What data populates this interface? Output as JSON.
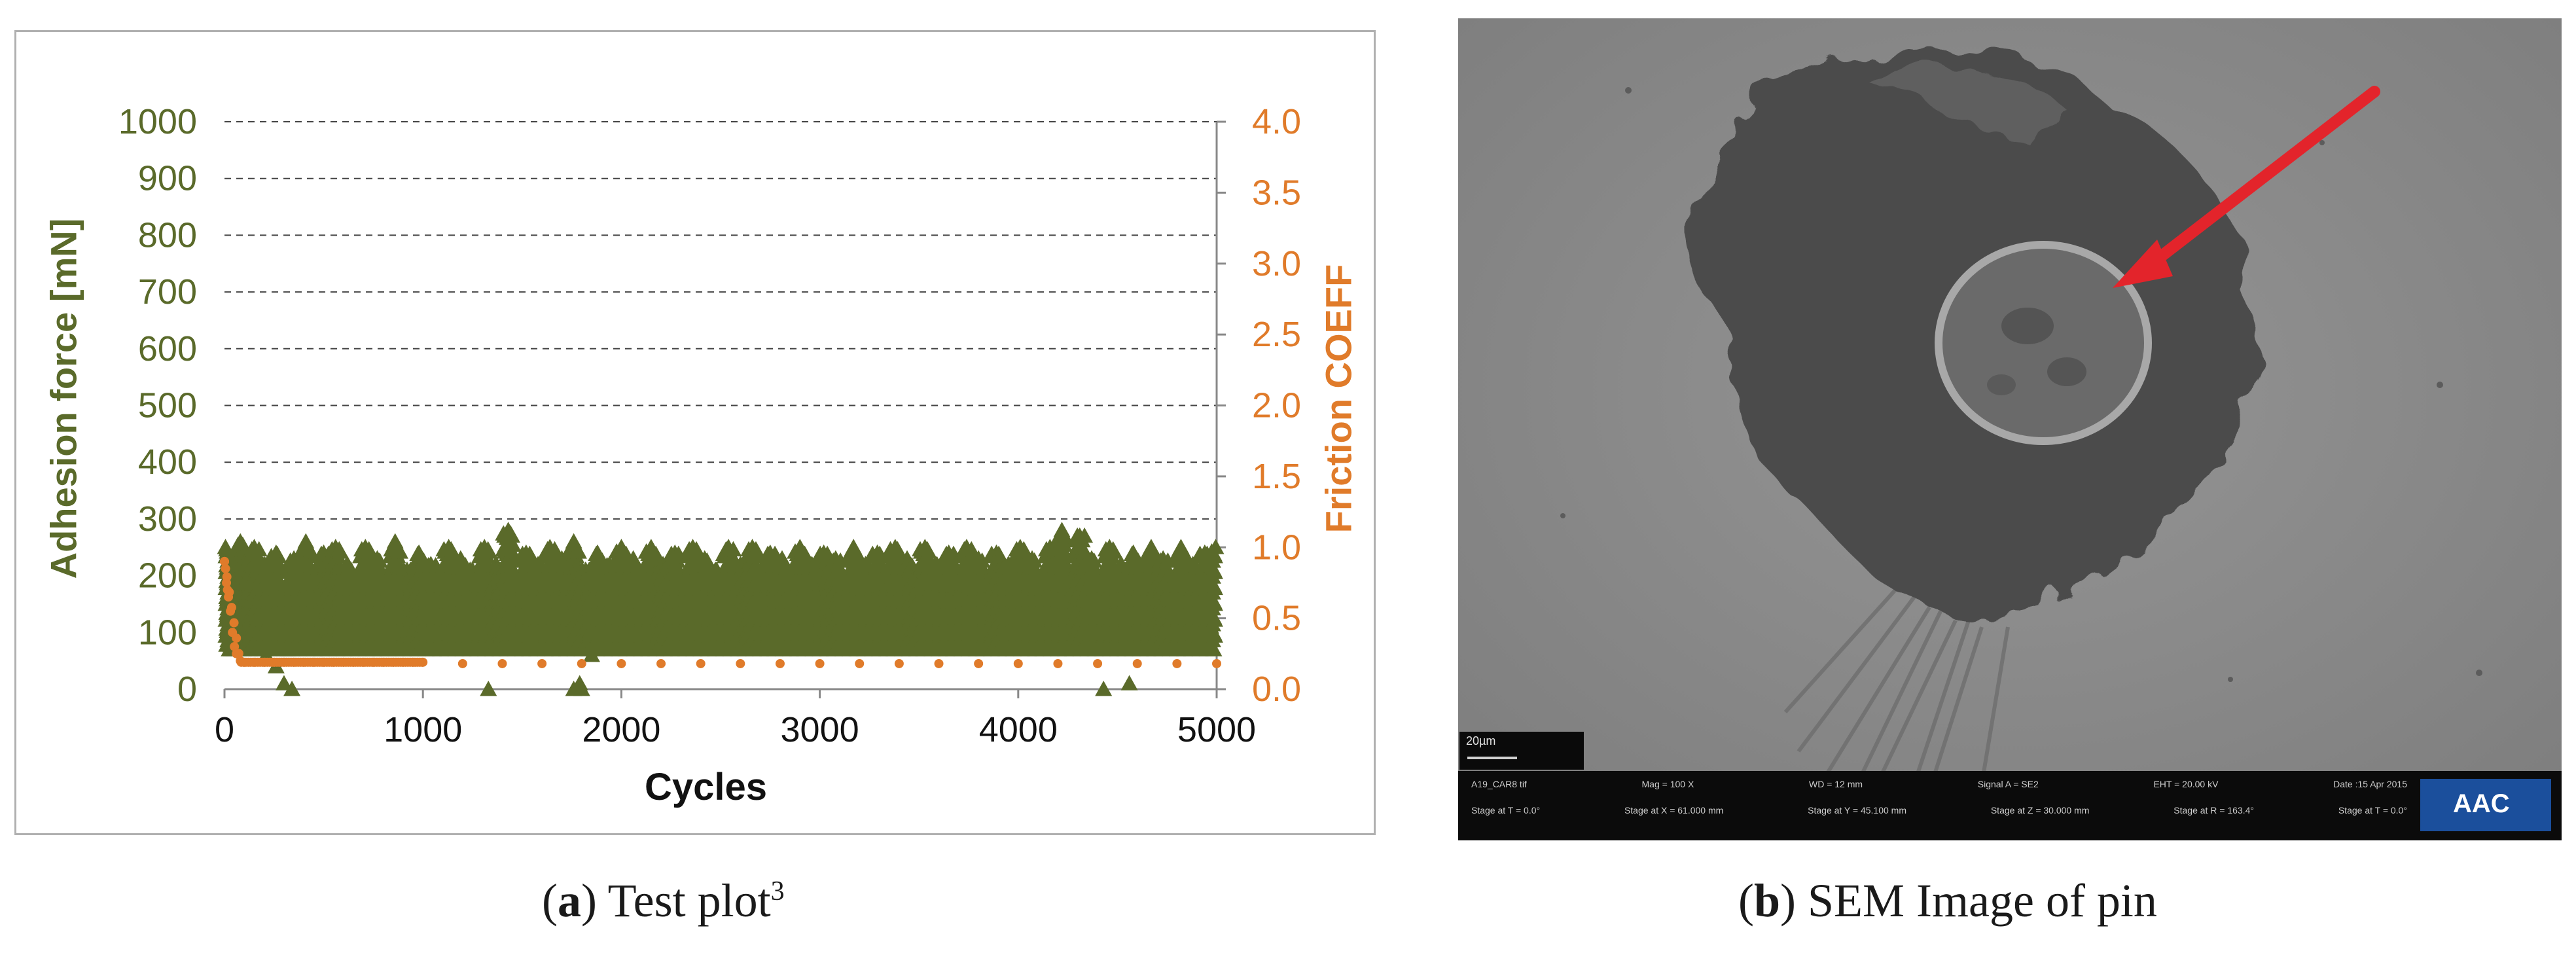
{
  "captions": {
    "a": {
      "open": "(",
      "letter": "a",
      "close": ")",
      "text": " Test plot",
      "superscript": "3"
    },
    "b": {
      "open": "(",
      "letter": "b",
      "close": ")",
      "text": " SEM Image of pin"
    }
  },
  "chart_data": {
    "type": "scatter",
    "x": {
      "label": "Cycles",
      "range": [
        0,
        5000
      ],
      "ticks": [
        "0",
        "1000",
        "2000",
        "3000",
        "4000",
        "5000"
      ]
    },
    "y_left": {
      "label": "Adhesion force [mN]",
      "range": [
        0,
        1000
      ],
      "color": "#5a6a2a",
      "ticks": [
        "0",
        "100",
        "200",
        "300",
        "400",
        "500",
        "600",
        "700",
        "800",
        "900",
        "1000"
      ]
    },
    "y_right": {
      "label": "Friction COEFF",
      "range": [
        0,
        4.0
      ],
      "color": "#e07b2a",
      "ticks": [
        "0.0",
        "0.5",
        "1.0",
        "1.5",
        "2.0",
        "2.5",
        "3.0",
        "3.5",
        "4.0"
      ]
    },
    "grid": "horizontal dashed",
    "series": [
      {
        "axis": "left",
        "marker": "triangle",
        "color": "#5a6a2a",
        "points": [
          [
            5,
            250
          ],
          [
            20,
            180
          ],
          [
            40,
            230
          ],
          [
            60,
            120
          ],
          [
            80,
            260
          ],
          [
            100,
            200
          ],
          [
            120,
            90
          ],
          [
            150,
            250
          ],
          [
            180,
            160
          ],
          [
            200,
            220
          ],
          [
            230,
            110
          ],
          [
            260,
            240
          ],
          [
            290,
            180
          ],
          [
            320,
            70
          ],
          [
            350,
            230
          ],
          [
            380,
            150
          ],
          [
            410,
            260
          ],
          [
            440,
            190
          ],
          [
            470,
            100
          ],
          [
            500,
            240
          ],
          [
            530,
            170
          ],
          [
            560,
            250
          ],
          [
            590,
            130
          ],
          [
            620,
            220
          ],
          [
            650,
            90
          ],
          [
            680,
            200
          ],
          [
            710,
            250
          ],
          [
            740,
            150
          ],
          [
            770,
            230
          ],
          [
            800,
            110
          ],
          [
            830,
            190
          ],
          [
            860,
            260
          ],
          [
            890,
            140
          ],
          [
            920,
            210
          ],
          [
            950,
            80
          ],
          [
            980,
            240
          ],
          [
            1010,
            170
          ],
          [
            1040,
            220
          ],
          [
            1070,
            100
          ],
          [
            1100,
            200
          ],
          [
            1130,
            250
          ],
          [
            1160,
            130
          ],
          [
            1190,
            230
          ],
          [
            1220,
            90
          ],
          [
            1250,
            210
          ],
          [
            1280,
            160
          ],
          [
            1310,
            250
          ],
          [
            1340,
            120
          ],
          [
            1370,
            220
          ],
          [
            1400,
            180
          ],
          [
            1430,
            280
          ],
          [
            1460,
            110
          ],
          [
            1490,
            200
          ],
          [
            1520,
            240
          ],
          [
            1550,
            130
          ],
          [
            1580,
            220
          ],
          [
            1610,
            90
          ],
          [
            1640,
            250
          ],
          [
            1670,
            170
          ],
          [
            1700,
            230
          ],
          [
            1730,
            110
          ],
          [
            1760,
            260
          ],
          [
            1790,
            150
          ],
          [
            1820,
            210
          ],
          [
            1850,
            60
          ],
          [
            1880,
            240
          ],
          [
            1910,
            180
          ],
          [
            1940,
            220
          ],
          [
            1970,
            100
          ],
          [
            2000,
            250
          ],
          [
            2030,
            170
          ],
          [
            2060,
            230
          ],
          [
            2090,
            120
          ],
          [
            2120,
            200
          ],
          [
            2150,
            250
          ],
          [
            2180,
            90
          ],
          [
            2210,
            220
          ],
          [
            2240,
            160
          ],
          [
            2270,
            240
          ],
          [
            2300,
            110
          ],
          [
            2330,
            200
          ],
          [
            2360,
            250
          ],
          [
            2390,
            140
          ],
          [
            2420,
            230
          ],
          [
            2450,
            80
          ],
          [
            2480,
            210
          ],
          [
            2510,
            170
          ],
          [
            2540,
            250
          ],
          [
            2570,
            120
          ],
          [
            2600,
            220
          ],
          [
            2630,
            180
          ],
          [
            2660,
            250
          ],
          [
            2690,
            100
          ],
          [
            2720,
            210
          ],
          [
            2750,
            240
          ],
          [
            2780,
            140
          ],
          [
            2810,
            230
          ],
          [
            2840,
            90
          ],
          [
            2870,
            200
          ],
          [
            2900,
            250
          ],
          [
            2930,
            160
          ],
          [
            2960,
            220
          ],
          [
            2990,
            110
          ],
          [
            3020,
            240
          ],
          [
            3050,
            180
          ],
          [
            3080,
            230
          ],
          [
            3110,
            90
          ],
          [
            3140,
            200
          ],
          [
            3170,
            250
          ],
          [
            3200,
            130
          ],
          [
            3230,
            220
          ],
          [
            3260,
            170
          ],
          [
            3290,
            240
          ],
          [
            3320,
            100
          ],
          [
            3350,
            210
          ],
          [
            3380,
            250
          ],
          [
            3410,
            150
          ],
          [
            3440,
            230
          ],
          [
            3470,
            90
          ],
          [
            3500,
            200
          ],
          [
            3530,
            250
          ],
          [
            3560,
            120
          ],
          [
            3590,
            220
          ],
          [
            3620,
            170
          ],
          [
            3650,
            240
          ],
          [
            3680,
            100
          ],
          [
            3710,
            210
          ],
          [
            3740,
            250
          ],
          [
            3770,
            140
          ],
          [
            3800,
            230
          ],
          [
            3830,
            90
          ],
          [
            3860,
            200
          ],
          [
            3890,
            240
          ],
          [
            3920,
            160
          ],
          [
            3950,
            220
          ],
          [
            3980,
            110
          ],
          [
            4010,
            250
          ],
          [
            4040,
            170
          ],
          [
            4070,
            230
          ],
          [
            4100,
            100
          ],
          [
            4130,
            200
          ],
          [
            4160,
            250
          ],
          [
            4190,
            140
          ],
          [
            4220,
            280
          ],
          [
            4250,
            120
          ],
          [
            4280,
            210
          ],
          [
            4310,
            270
          ],
          [
            4340,
            150
          ],
          [
            4370,
            230
          ],
          [
            4400,
            90
          ],
          [
            4430,
            200
          ],
          [
            4460,
            250
          ],
          [
            4490,
            130
          ],
          [
            4520,
            220
          ],
          [
            4550,
            170
          ],
          [
            4580,
            240
          ],
          [
            4610,
            100
          ],
          [
            4640,
            210
          ],
          [
            4670,
            250
          ],
          [
            4700,
            140
          ],
          [
            4730,
            230
          ],
          [
            4760,
            90
          ],
          [
            4790,
            200
          ],
          [
            4820,
            250
          ],
          [
            4850,
            120
          ],
          [
            4880,
            220
          ],
          [
            4910,
            170
          ],
          [
            4940,
            240
          ],
          [
            4970,
            110
          ],
          [
            4995,
            250
          ],
          [
            35,
            70
          ],
          [
            210,
            60
          ],
          [
            260,
            40
          ],
          [
            300,
            10
          ],
          [
            340,
            0
          ],
          [
            1330,
            0
          ],
          [
            1760,
            0
          ],
          [
            1790,
            10
          ],
          [
            1800,
            0
          ],
          [
            4430,
            0
          ],
          [
            4560,
            10
          ]
        ]
      },
      {
        "axis": "right",
        "marker": "circle",
        "color": "#e07b2a",
        "points": [
          [
            0,
            0.9
          ],
          [
            5,
            0.85
          ],
          [
            10,
            0.75
          ],
          [
            15,
            0.7
          ],
          [
            20,
            0.65
          ],
          [
            30,
            0.55
          ],
          [
            40,
            0.4
          ],
          [
            50,
            0.3
          ],
          [
            60,
            0.25
          ],
          [
            80,
            0.2
          ],
          [
            100,
            0.19
          ],
          [
            150,
            0.19
          ],
          [
            200,
            0.19
          ],
          [
            250,
            0.19
          ],
          [
            300,
            0.19
          ],
          [
            350,
            0.19
          ],
          [
            400,
            0.19
          ],
          [
            450,
            0.19
          ],
          [
            500,
            0.19
          ],
          [
            550,
            0.19
          ],
          [
            600,
            0.19
          ],
          [
            650,
            0.19
          ],
          [
            700,
            0.19
          ],
          [
            750,
            0.19
          ],
          [
            800,
            0.19
          ],
          [
            850,
            0.19
          ],
          [
            900,
            0.19
          ],
          [
            950,
            0.19
          ],
          [
            1000,
            0.19
          ],
          [
            1200,
            0.18
          ],
          [
            1400,
            0.18
          ],
          [
            1600,
            0.18
          ],
          [
            1800,
            0.18
          ],
          [
            2000,
            0.18
          ],
          [
            2200,
            0.18
          ],
          [
            2400,
            0.18
          ],
          [
            2600,
            0.18
          ],
          [
            2800,
            0.18
          ],
          [
            3000,
            0.18
          ],
          [
            3200,
            0.18
          ],
          [
            3400,
            0.18
          ],
          [
            3600,
            0.18
          ],
          [
            3800,
            0.18
          ],
          [
            4000,
            0.18
          ],
          [
            4200,
            0.18
          ],
          [
            4400,
            0.18
          ],
          [
            4600,
            0.18
          ],
          [
            4800,
            0.18
          ],
          [
            5000,
            0.18
          ]
        ]
      }
    ]
  },
  "sem_image": {
    "databar": {
      "scale": "20µm",
      "fields_top": [
        "A19_CAR8 tif",
        "Mag = 100 X",
        "WD = 12 mm",
        "Signal A = SE2",
        "EHT = 20.00 kV",
        "Date :15 Apr 2015"
      ],
      "fields_bottom": [
        "Stage at T = 0.0°",
        "Stage at X = 61.000 mm",
        "Stage at Y = 45.100 mm",
        "Stage at Z = 30.000 mm",
        "Stage at R = 163.4°",
        "Stage at T = 0.0°"
      ],
      "logo": "AAC"
    },
    "colors": {
      "background": "#8b8b8b",
      "wear_scar": "#4a4a4a",
      "arrow": "#e3242b"
    }
  }
}
